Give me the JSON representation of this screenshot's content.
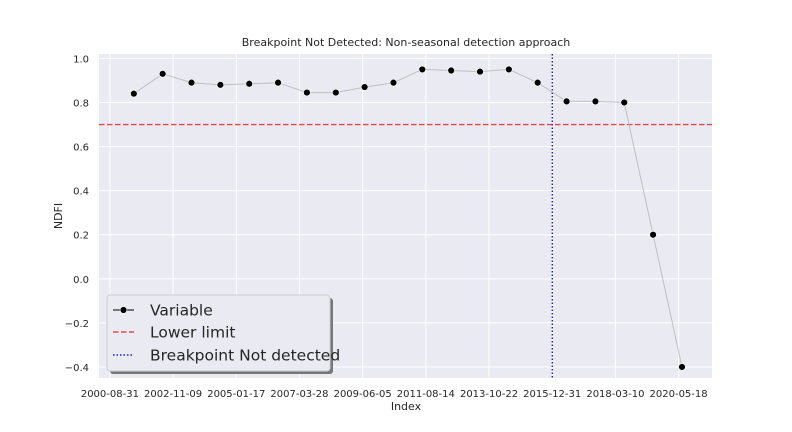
{
  "chart_data": {
    "type": "line",
    "title": "Breakpoint Not Detected: Non-seasonal detection approach",
    "xlabel": "Index",
    "ylabel": "NDFI",
    "ylim": [
      -0.45,
      1.02
    ],
    "yticks": [
      1.0,
      0.8,
      0.6,
      0.4,
      0.2,
      0.0,
      -0.2,
      -0.4
    ],
    "ytick_labels": [
      "1.0",
      "0.8",
      "0.6",
      "0.4",
      "0.2",
      "0.0",
      "−0.2",
      "−0.4"
    ],
    "xlim": [
      "2000-04-15",
      "2021-07-15"
    ],
    "xticks": [
      "2000-08-31",
      "2002-11-09",
      "2005-01-17",
      "2007-03-28",
      "2009-06-05",
      "2011-08-14",
      "2013-10-22",
      "2015-12-31",
      "2018-03-10",
      "2020-05-18"
    ],
    "grid": true,
    "legend_position": "lower-left",
    "series": [
      {
        "name": "Variable",
        "style": "line-with-markers",
        "line_color": "#c0c0c0",
        "marker_color": "#000000",
        "x": [
          "2001-06-30",
          "2002-06-30",
          "2003-06-30",
          "2004-06-30",
          "2005-06-30",
          "2006-06-30",
          "2007-06-30",
          "2008-06-30",
          "2009-06-30",
          "2010-06-30",
          "2011-06-30",
          "2012-06-30",
          "2013-06-30",
          "2014-06-30",
          "2015-06-30",
          "2016-06-30",
          "2017-06-30",
          "2018-06-30",
          "2019-06-30",
          "2020-06-30"
        ],
        "y": [
          0.84,
          0.93,
          0.89,
          0.88,
          0.885,
          0.89,
          0.845,
          0.845,
          0.87,
          0.89,
          0.95,
          0.945,
          0.94,
          0.95,
          0.89,
          0.805,
          0.805,
          0.8,
          0.2,
          -0.4
        ]
      }
    ],
    "hlines": [
      {
        "name": "Lower limit",
        "y": 0.7,
        "color": "#e24a4a",
        "style": "dashed"
      }
    ],
    "vlines": [
      {
        "name": "Breakpoint Not detected",
        "x": "2016-01-01",
        "color": "#1c1ccf",
        "style": "dotted"
      }
    ],
    "legend": [
      "Variable",
      "Lower limit",
      "Breakpoint Not detected"
    ]
  }
}
